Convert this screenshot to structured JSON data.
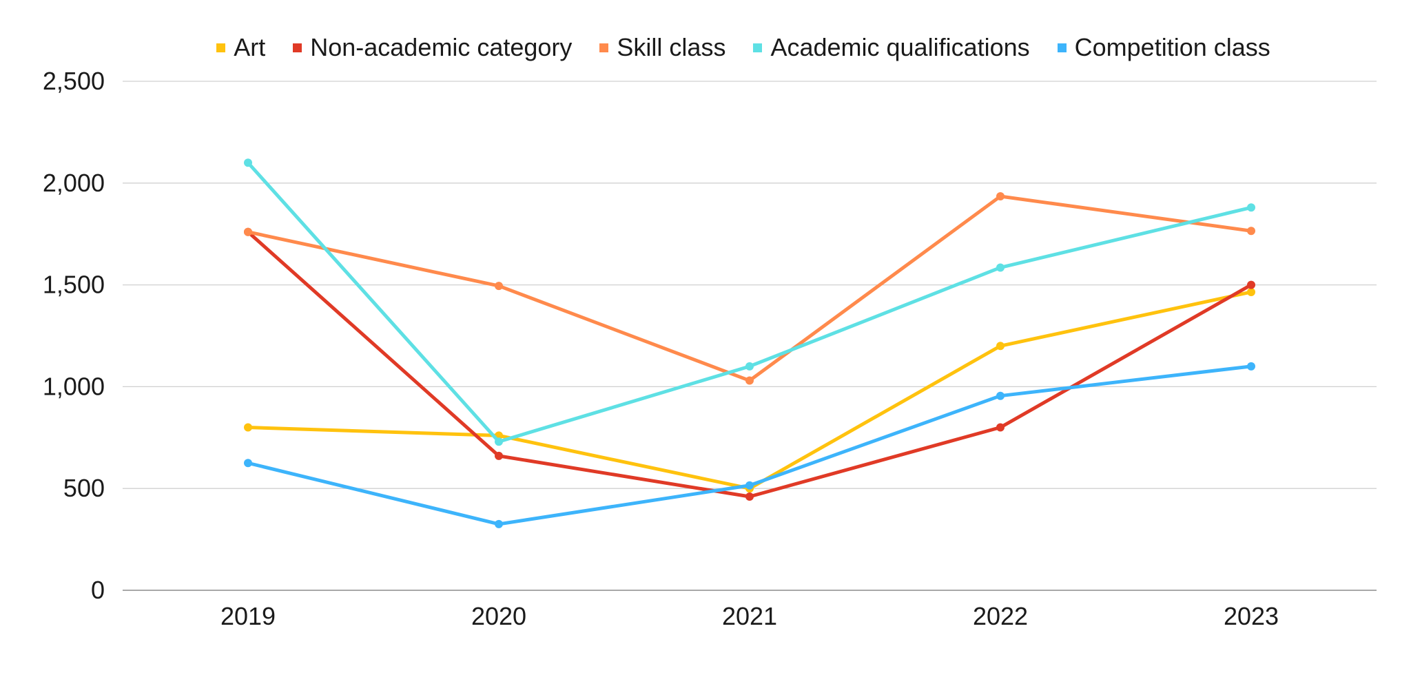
{
  "chart_data": {
    "type": "line",
    "title": "",
    "xlabel": "",
    "ylabel": "",
    "categories": [
      "2019",
      "2020",
      "2021",
      "2022",
      "2023"
    ],
    "ylim": [
      0,
      2500
    ],
    "yticks": [
      "0",
      "500",
      "1,000",
      "1,500",
      "2,000",
      "2,500"
    ],
    "ytick_values": [
      0,
      500,
      1000,
      1500,
      2000,
      2500
    ],
    "grid": true,
    "legend_position": "top",
    "series": [
      {
        "name": "Art",
        "color": "#FFC20E",
        "values": [
          800,
          760,
          500,
          1200,
          1465
        ]
      },
      {
        "name": "Non-academic category",
        "color": "#E03A26",
        "values": [
          1760,
          660,
          460,
          800,
          1500
        ]
      },
      {
        "name": "Skill class",
        "color": "#FF8A4C",
        "values": [
          1760,
          1495,
          1030,
          1935,
          1765
        ]
      },
      {
        "name": "Academic qualifications",
        "color": "#5EE0E4",
        "values": [
          2100,
          730,
          1100,
          1585,
          1880
        ]
      },
      {
        "name": "Competition class",
        "color": "#3DB4FB",
        "values": [
          625,
          325,
          515,
          955,
          1100
        ]
      }
    ]
  }
}
